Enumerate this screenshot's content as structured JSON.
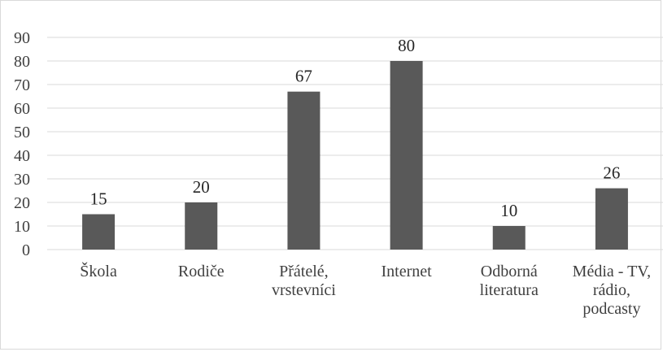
{
  "chart_data": {
    "type": "bar",
    "title": "",
    "xlabel": "",
    "ylabel": "",
    "categories": [
      [
        "Škola"
      ],
      [
        "Rodiče"
      ],
      [
        "Přátelé,",
        "vrstevníci"
      ],
      [
        "Internet"
      ],
      [
        "Odborná",
        "literatura"
      ],
      [
        "Média - TV,",
        "rádio,",
        "podcasty"
      ]
    ],
    "values": [
      15,
      20,
      67,
      80,
      10,
      26
    ],
    "ylim": [
      0,
      90
    ],
    "yticks": [
      0,
      10,
      20,
      30,
      40,
      50,
      60,
      70,
      80,
      90
    ],
    "grid": true,
    "legend": "none",
    "bar_color": "#595959",
    "grid_color": "#d9d9d9",
    "axis_color": "#d9d9d9"
  }
}
